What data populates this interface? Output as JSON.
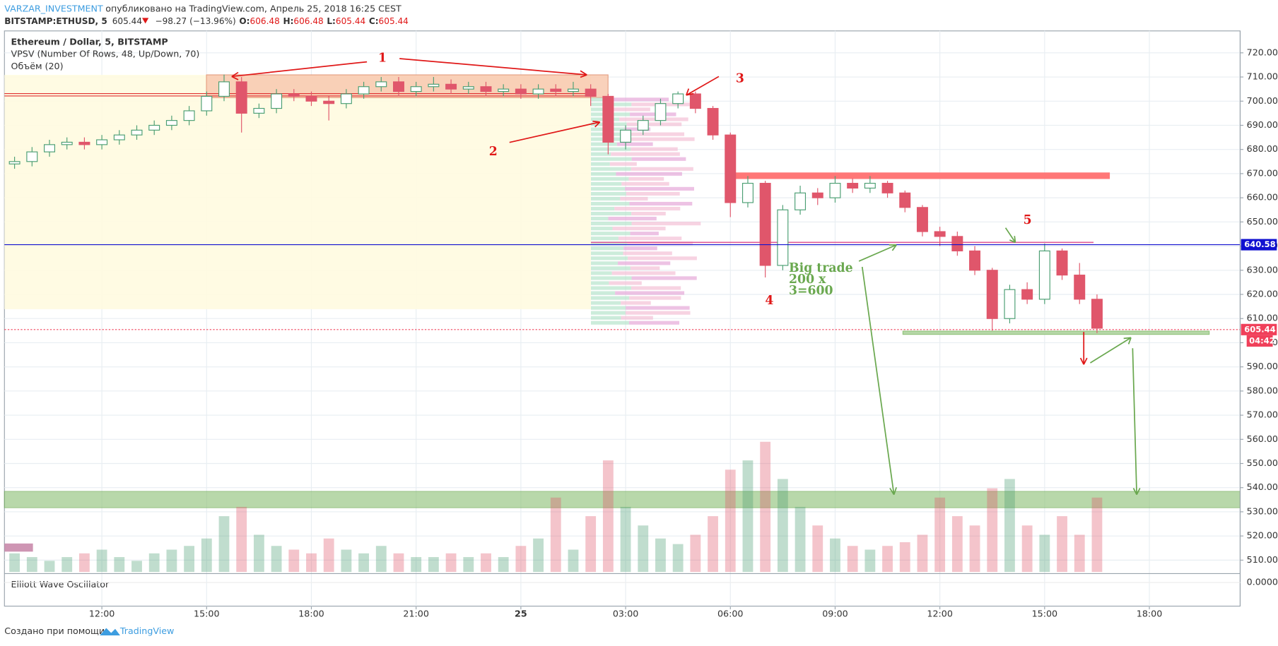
{
  "header": {
    "author": "VARZAR_INVESTMENT",
    "published": "опубликовано на TradingView.com, Апрель 25, 2018 16:25 CEST"
  },
  "chart_data": {
    "type": "candlestick",
    "symbol": "BITSTAMP:ETHUSD, 5",
    "last": 605.44,
    "last_color": "#f0405a",
    "countdown": "04:42",
    "change": "−98.27 (−13.96%)",
    "ohlc": [
      {
        "label": "O:",
        "value": 606.48
      },
      {
        "label": "H:",
        "value": 606.48
      },
      {
        "label": "L:",
        "value": 605.44
      },
      {
        "label": "C:",
        "value": 605.44
      }
    ],
    "title": "Ethereum / Dollar, 5, BITSTAMP",
    "indicators": [
      "VPSV (Number Of Rows, 48, Up/Down, 70)",
      "Объём (20)"
    ],
    "oscillator": {
      "name": "Elliott Wave Oscillator",
      "zero": {
        "value": 0,
        "label": "0.0000"
      }
    },
    "up_color": "#4a9e72",
    "down_color": "#e0566b",
    "x": [
      9.5,
      10,
      10.5,
      11,
      11.5,
      12,
      12.5,
      13,
      13.5,
      14,
      14.5,
      15,
      15.5,
      16,
      16.5,
      17,
      17.5,
      18,
      18.5,
      19,
      19.5,
      20,
      20.5,
      21,
      21.5,
      22,
      22.5,
      23,
      23.5,
      24,
      24.5,
      25,
      25.5,
      26,
      26.5,
      27,
      27.5,
      28,
      28.5,
      29,
      29.5,
      30,
      30.5,
      31,
      31.5,
      32,
      32.5,
      33,
      33.5,
      34,
      34.5,
      35,
      35.5,
      36,
      36.5,
      37,
      37.5,
      38,
      38.5,
      39,
      39.5,
      40,
      40.5
    ],
    "open": [
      674,
      675,
      679,
      682,
      683,
      682,
      684,
      686,
      688,
      690,
      692,
      696,
      702,
      708,
      695,
      697,
      703,
      702,
      700,
      699,
      703,
      706,
      708,
      704,
      706,
      707,
      705,
      706,
      704,
      705,
      703,
      705,
      704,
      705,
      702,
      683,
      688,
      692,
      699,
      703,
      697,
      686,
      658,
      666,
      632,
      655,
      662,
      660,
      666,
      664,
      666,
      662,
      656,
      646,
      644,
      638,
      630,
      610,
      622,
      618,
      638,
      628,
      618
    ],
    "high": [
      677,
      681,
      684,
      685,
      685,
      686,
      688,
      690,
      692,
      694,
      698,
      704,
      711,
      710,
      699,
      705,
      705,
      704,
      702,
      705,
      708,
      710,
      710,
      708,
      710,
      709,
      708,
      708,
      707,
      707,
      707,
      707,
      708,
      707,
      703,
      690,
      694,
      701,
      704,
      704,
      698,
      687,
      669,
      667,
      657,
      665,
      664,
      669,
      668,
      669,
      667,
      663,
      657,
      648,
      646,
      640,
      631,
      624,
      625,
      641,
      639,
      633,
      620
    ],
    "low": [
      672,
      673,
      677,
      680,
      680,
      680,
      682,
      684,
      686,
      688,
      690,
      694,
      700,
      687,
      693,
      695,
      700,
      698,
      692,
      697,
      701,
      704,
      702,
      702,
      704,
      703,
      703,
      702,
      702,
      701,
      701,
      702,
      702,
      698,
      678,
      680,
      686,
      690,
      697,
      695,
      684,
      652,
      656,
      627,
      630,
      653,
      657,
      658,
      662,
      662,
      660,
      654,
      644,
      640,
      636,
      628,
      605,
      608,
      616,
      616,
      626,
      616,
      604
    ],
    "close": [
      675,
      679,
      682,
      683,
      682,
      684,
      686,
      688,
      690,
      692,
      696,
      702,
      708,
      695,
      697,
      703,
      702,
      700,
      699,
      703,
      706,
      708,
      704,
      706,
      707,
      705,
      706,
      704,
      705,
      703,
      705,
      704,
      705,
      702,
      683,
      688,
      692,
      699,
      703,
      697,
      686,
      658,
      666,
      632,
      655,
      662,
      660,
      666,
      664,
      666,
      662,
      656,
      646,
      644,
      638,
      630,
      610,
      622,
      618,
      638,
      628,
      618,
      606
    ],
    "volume": [
      10,
      8,
      6,
      8,
      10,
      12,
      8,
      6,
      10,
      12,
      14,
      18,
      30,
      35,
      20,
      14,
      12,
      10,
      18,
      12,
      10,
      14,
      10,
      8,
      8,
      10,
      8,
      10,
      8,
      14,
      18,
      40,
      12,
      30,
      60,
      35,
      25,
      18,
      15,
      20,
      30,
      55,
      60,
      70,
      50,
      35,
      25,
      18,
      14,
      12,
      14,
      16,
      20,
      40,
      30,
      25,
      45,
      50,
      25,
      20,
      30,
      20,
      40
    ],
    "xlim": [
      9.21,
      44.6
    ],
    "xticks": [
      {
        "value": 12,
        "label": "12:00"
      },
      {
        "value": 15,
        "label": "15:00"
      },
      {
        "value": 18,
        "label": "18:00"
      },
      {
        "value": 21,
        "label": "21:00"
      },
      {
        "value": 24,
        "label": "25"
      },
      {
        "value": 27,
        "label": "03:00"
      },
      {
        "value": 30,
        "label": "06:00"
      },
      {
        "value": 33,
        "label": "09:00"
      },
      {
        "value": 36,
        "label": "12:00"
      },
      {
        "value": 39,
        "label": "15:00"
      },
      {
        "value": 42,
        "label": "18:00"
      }
    ],
    "ylim": [
      505.1,
      728.4
    ],
    "yticks": [
      {
        "value": 510,
        "label": "510.00"
      },
      {
        "value": 520,
        "label": "520.00"
      },
      {
        "value": 530,
        "label": "530.00"
      },
      {
        "value": 540,
        "label": "540.00"
      },
      {
        "value": 550,
        "label": "550.00"
      },
      {
        "value": 560,
        "label": "560.00"
      },
      {
        "value": 570,
        "label": "570.00"
      },
      {
        "value": 580,
        "label": "580.00"
      },
      {
        "value": 590,
        "label": "590.00"
      },
      {
        "value": 600,
        "label": "600.00"
      },
      {
        "value": 610,
        "label": "610.00"
      },
      {
        "value": 620,
        "label": "620.00"
      },
      {
        "value": 630,
        "label": "630.00"
      },
      {
        "value": 640,
        "label": "640.00"
      },
      {
        "value": 650,
        "label": "650.00"
      },
      {
        "value": 660,
        "label": "660.00"
      },
      {
        "value": 670,
        "label": "670.00"
      },
      {
        "value": 680,
        "label": "680.00"
      },
      {
        "value": 690,
        "label": "690.00"
      },
      {
        "value": 700,
        "label": "700.00"
      },
      {
        "value": 710,
        "label": "710.00"
      },
      {
        "value": 720,
        "label": "720.00"
      }
    ],
    "hlines": [
      {
        "value": 640.58,
        "color": "#1010d0"
      }
    ],
    "grid": true,
    "annotations": [
      "1",
      "2",
      "3",
      "4",
      "5",
      "Big trade",
      "200 x",
      "3=600"
    ]
  },
  "footer": {
    "text": "Создано при помощи",
    "brand": "TradingView"
  }
}
